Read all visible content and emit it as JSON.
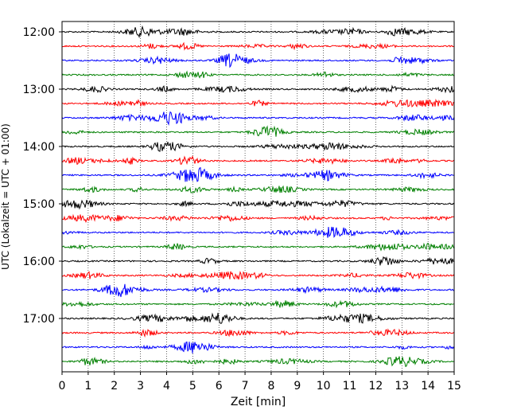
{
  "chart_data": {
    "type": "line",
    "title": "",
    "xlabel": "Zeit  [min]",
    "ylabel": "UTC (Lokalzeit = UTC + 01:00)",
    "xlim": [
      0,
      15
    ],
    "x_ticks": [
      "0",
      "1",
      "2",
      "3",
      "4",
      "5",
      "6",
      "7",
      "8",
      "9",
      "10",
      "11",
      "12",
      "13",
      "14",
      "15"
    ],
    "y_tick_labels": [
      "12:00",
      "13:00",
      "14:00",
      "15:00",
      "16:00",
      "17:00"
    ],
    "grid": "vertical dotted lines at each minute",
    "trace_interval_minutes": 15,
    "trace_count": 24,
    "first_trace": "12:00",
    "last_trace": "17:45",
    "colors": [
      "#000000",
      "#ff0000",
      "#0000ff",
      "#008000"
    ],
    "series_description": "seismogram helicorder traces, one 15-minute line per row"
  }
}
